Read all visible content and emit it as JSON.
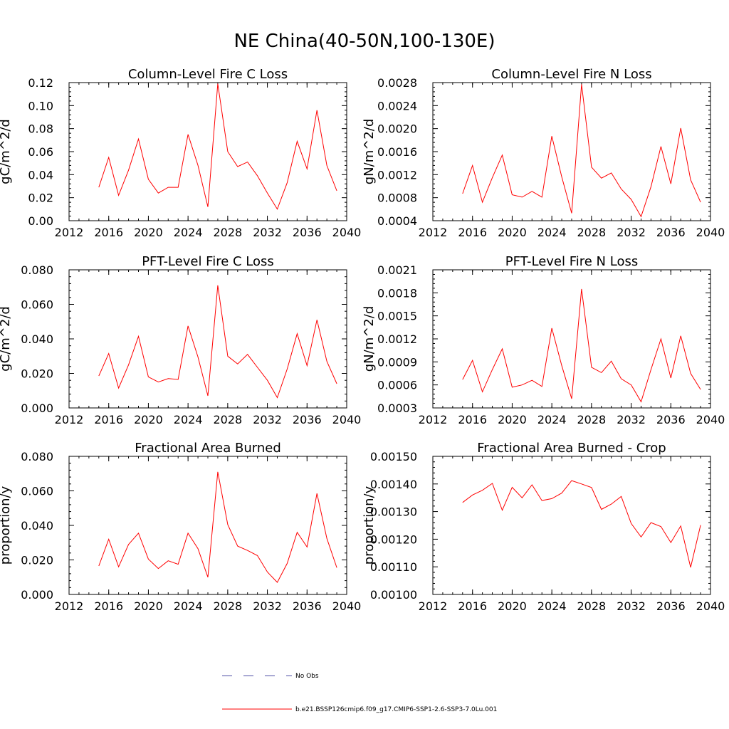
{
  "figure": {
    "title": "NE China(40-50N,100-130E)"
  },
  "legend": {
    "entries": [
      {
        "label": "No Obs",
        "style": "dashed",
        "color": "#5555aa"
      },
      {
        "label": "b.e21.BSSP126cmip6.f09_g17.CMIP6-SSP1-2.6-SSP3-7.0Lu.001",
        "style": "solid",
        "color": "#ff0000"
      }
    ]
  },
  "chart_data": [
    {
      "type": "line",
      "title": "Column-Level Fire C Loss",
      "ylabel": "gC/m^2/d",
      "xlim": [
        2012,
        2040
      ],
      "ylim": [
        0,
        0.12
      ],
      "xticks": [
        2012,
        2016,
        2020,
        2024,
        2028,
        2032,
        2036,
        2040
      ],
      "xtick_labels": [
        "2012",
        "2016",
        "2020",
        "2024",
        "2028",
        "2032",
        "2036",
        "2040"
      ],
      "yticks": [
        0,
        0.02,
        0.04,
        0.06,
        0.08,
        0.1,
        0.12
      ],
      "ytick_labels": [
        "0.00",
        "0.02",
        "0.04",
        "0.06",
        "0.08",
        "0.10",
        "0.12"
      ],
      "series": [
        {
          "color": "#ff0000",
          "x": [
            2015,
            2016,
            2017,
            2018,
            2019,
            2020,
            2021,
            2022,
            2023,
            2024,
            2025,
            2026,
            2027,
            2028,
            2029,
            2030,
            2031,
            2032,
            2033,
            2034,
            2035,
            2036,
            2037,
            2038,
            2039
          ],
          "y": [
            0.029,
            0.055,
            0.022,
            0.044,
            0.071,
            0.036,
            0.024,
            0.029,
            0.029,
            0.075,
            0.048,
            0.012,
            0.119,
            0.06,
            0.047,
            0.051,
            0.039,
            0.024,
            0.01,
            0.033,
            0.069,
            0.045,
            0.096,
            0.048,
            0.026
          ]
        }
      ]
    },
    {
      "type": "line",
      "title": "Column-Level Fire N Loss",
      "ylabel": "gN/m^2/d",
      "xlim": [
        2012,
        2040
      ],
      "ylim": [
        0.0004,
        0.0028
      ],
      "xticks": [
        2012,
        2016,
        2020,
        2024,
        2028,
        2032,
        2036,
        2040
      ],
      "xtick_labels": [
        "2012",
        "2016",
        "2020",
        "2024",
        "2028",
        "2032",
        "2036",
        "2040"
      ],
      "yticks": [
        0.0004,
        0.0008,
        0.0012,
        0.0016,
        0.002,
        0.0024,
        0.0028
      ],
      "ytick_labels": [
        "0.0004",
        "0.0008",
        "0.0012",
        "0.0016",
        "0.0020",
        "0.0024",
        "0.0028"
      ],
      "series": [
        {
          "color": "#ff0000",
          "x": [
            2015,
            2016,
            2017,
            2018,
            2019,
            2020,
            2021,
            2022,
            2023,
            2024,
            2025,
            2026,
            2027,
            2028,
            2029,
            2030,
            2031,
            2032,
            2033,
            2034,
            2035,
            2036,
            2037,
            2038,
            2039
          ],
          "y": [
            0.00087,
            0.00136,
            0.00072,
            0.00115,
            0.00154,
            0.00085,
            0.00081,
            0.00091,
            0.00081,
            0.00187,
            0.00116,
            0.00053,
            0.00277,
            0.00133,
            0.00114,
            0.00123,
            0.00095,
            0.00077,
            0.00047,
            0.00099,
            0.00169,
            0.00104,
            0.00201,
            0.00111,
            0.00072
          ]
        }
      ]
    },
    {
      "type": "line",
      "title": "PFT-Level Fire C Loss",
      "ylabel": "gC/m^2/d",
      "xlim": [
        2012,
        2040
      ],
      "ylim": [
        0,
        0.08
      ],
      "xticks": [
        2012,
        2016,
        2020,
        2024,
        2028,
        2032,
        2036,
        2040
      ],
      "xtick_labels": [
        "2012",
        "2016",
        "2020",
        "2024",
        "2028",
        "2032",
        "2036",
        "2040"
      ],
      "yticks": [
        0,
        0.02,
        0.04,
        0.06,
        0.08
      ],
      "ytick_labels": [
        "0.000",
        "0.020",
        "0.040",
        "0.060",
        "0.080"
      ],
      "series": [
        {
          "color": "#ff0000",
          "x": [
            2015,
            2016,
            2017,
            2018,
            2019,
            2020,
            2021,
            2022,
            2023,
            2024,
            2025,
            2026,
            2027,
            2028,
            2029,
            2030,
            2031,
            2032,
            2033,
            2034,
            2035,
            2036,
            2037,
            2038,
            2039
          ],
          "y": [
            0.0185,
            0.0315,
            0.0115,
            0.025,
            0.0415,
            0.018,
            0.015,
            0.017,
            0.0165,
            0.0475,
            0.0295,
            0.007,
            0.071,
            0.03,
            0.0255,
            0.031,
            0.0235,
            0.016,
            0.006,
            0.0225,
            0.043,
            0.0245,
            0.051,
            0.027,
            0.014
          ]
        }
      ]
    },
    {
      "type": "line",
      "title": "PFT-Level Fire N Loss",
      "ylabel": "gN/m^2/d",
      "xlim": [
        2012,
        2040
      ],
      "ylim": [
        0.0003,
        0.0021
      ],
      "xticks": [
        2012,
        2016,
        2020,
        2024,
        2028,
        2032,
        2036,
        2040
      ],
      "xtick_labels": [
        "2012",
        "2016",
        "2020",
        "2024",
        "2028",
        "2032",
        "2036",
        "2040"
      ],
      "yticks": [
        0.0003,
        0.0006,
        0.0009,
        0.0012,
        0.0015,
        0.0018,
        0.0021
      ],
      "ytick_labels": [
        "0.0003",
        "0.0006",
        "0.0009",
        "0.0012",
        "0.0015",
        "0.0018",
        "0.0021"
      ],
      "series": [
        {
          "color": "#ff0000",
          "x": [
            2015,
            2016,
            2017,
            2018,
            2019,
            2020,
            2021,
            2022,
            2023,
            2024,
            2025,
            2026,
            2027,
            2028,
            2029,
            2030,
            2031,
            2032,
            2033,
            2034,
            2035,
            2036,
            2037,
            2038,
            2039
          ],
          "y": [
            0.00067,
            0.00092,
            0.00051,
            0.0008,
            0.00107,
            0.00057,
            0.0006,
            0.00066,
            0.00058,
            0.00134,
            0.00085,
            0.00042,
            0.00185,
            0.00083,
            0.00076,
            0.00091,
            0.00068,
            0.0006,
            0.00038,
            0.0008,
            0.0012,
            0.00069,
            0.00124,
            0.00075,
            0.00054
          ]
        }
      ]
    },
    {
      "type": "line",
      "title": "Fractional Area Burned",
      "ylabel": "proportion/y",
      "xlim": [
        2012,
        2040
      ],
      "ylim": [
        0,
        0.08
      ],
      "xticks": [
        2012,
        2016,
        2020,
        2024,
        2028,
        2032,
        2036,
        2040
      ],
      "xtick_labels": [
        "2012",
        "2016",
        "2020",
        "2024",
        "2028",
        "2032",
        "2036",
        "2040"
      ],
      "yticks": [
        0,
        0.02,
        0.04,
        0.06,
        0.08
      ],
      "ytick_labels": [
        "0.000",
        "0.020",
        "0.040",
        "0.060",
        "0.080"
      ],
      "series": [
        {
          "color": "#ff0000",
          "x": [
            2015,
            2016,
            2017,
            2018,
            2019,
            2020,
            2021,
            2022,
            2023,
            2024,
            2025,
            2026,
            2027,
            2028,
            2029,
            2030,
            2031,
            2032,
            2033,
            2034,
            2035,
            2036,
            2037,
            2038,
            2039
          ],
          "y": [
            0.0165,
            0.032,
            0.016,
            0.029,
            0.0355,
            0.0205,
            0.015,
            0.0195,
            0.0175,
            0.0355,
            0.0265,
            0.01,
            0.071,
            0.0405,
            0.028,
            0.0255,
            0.0225,
            0.013,
            0.007,
            0.018,
            0.036,
            0.0275,
            0.0585,
            0.0325,
            0.0155
          ]
        }
      ]
    },
    {
      "type": "line",
      "title": "Fractional Area Burned - Crop",
      "ylabel": "proportion/y",
      "xlim": [
        2012,
        2040
      ],
      "ylim": [
        0.001,
        0.0015
      ],
      "xticks": [
        2012,
        2016,
        2020,
        2024,
        2028,
        2032,
        2036,
        2040
      ],
      "xtick_labels": [
        "2012",
        "2016",
        "2020",
        "2024",
        "2028",
        "2032",
        "2036",
        "2040"
      ],
      "yticks": [
        0.001,
        0.0011,
        0.0012,
        0.0013,
        0.0014,
        0.0015
      ],
      "ytick_labels": [
        "0.00100",
        "0.00110",
        "0.00120",
        "0.00130",
        "0.00140",
        "0.00150"
      ],
      "series": [
        {
          "color": "#ff0000",
          "x": [
            2015,
            2016,
            2017,
            2018,
            2019,
            2020,
            2021,
            2022,
            2023,
            2024,
            2025,
            2026,
            2027,
            2028,
            2029,
            2030,
            2031,
            2032,
            2033,
            2034,
            2035,
            2036,
            2037,
            2038,
            2039
          ],
          "y": [
            0.001333,
            0.00136,
            0.001377,
            0.001402,
            0.001305,
            0.001388,
            0.00135,
            0.001397,
            0.00134,
            0.001347,
            0.001367,
            0.001412,
            0.0014,
            0.001387,
            0.001308,
            0.001327,
            0.001355,
            0.001257,
            0.001208,
            0.00126,
            0.001246,
            0.001188,
            0.001248,
            0.001098,
            0.001251
          ]
        }
      ]
    }
  ]
}
